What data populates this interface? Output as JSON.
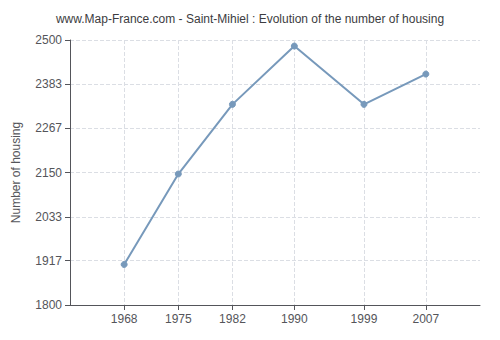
{
  "chart_data": {
    "type": "line",
    "title": "www.Map-France.com - Saint-Mihiel : Evolution of the number of housing",
    "ylabel": "Number of housing",
    "x": [
      1968,
      1975,
      1982,
      1990,
      1999,
      2007
    ],
    "values": [
      1907,
      2146,
      2330,
      2484,
      2330,
      2410
    ],
    "xlim": [
      1961,
      2014
    ],
    "xticks": [
      1968,
      1975,
      1982,
      1990,
      1999,
      2007
    ],
    "ylim": [
      1800,
      2500
    ],
    "yticks": [
      1800,
      1917,
      2033,
      2150,
      2267,
      2383,
      2500
    ],
    "color": "#7799bb",
    "marker": "circle",
    "grid": true
  }
}
